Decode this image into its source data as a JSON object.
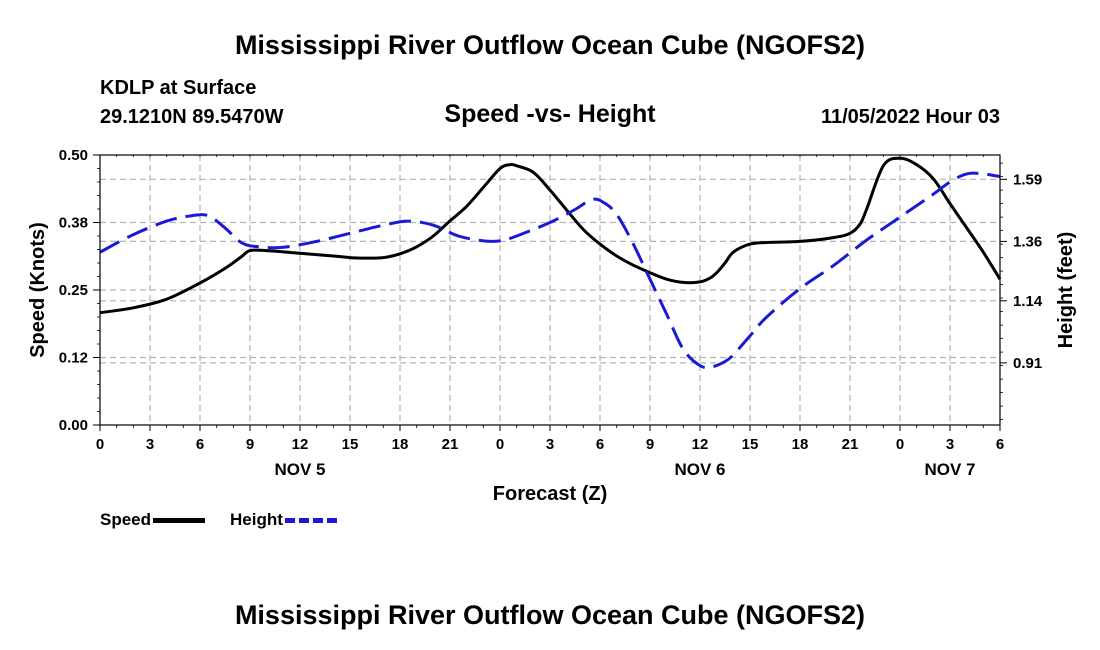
{
  "header": {
    "title": "Mississippi River Outflow Ocean Cube (NGOFS2)",
    "station": "KDLP at Surface",
    "coords": "29.1210N  89.5470W",
    "datetime": "11/05/2022 Hour 03",
    "footer_title": "Mississippi River Outflow Ocean Cube (NGOFS2)"
  },
  "legend": {
    "speed_label": "Speed",
    "height_label": "Height"
  },
  "colors": {
    "speed": "#000000",
    "height": "#1a1ad6",
    "grid": "#b4b4b4"
  },
  "chart_data": {
    "type": "line",
    "title": "Speed -vs- Height",
    "xlabel": "Forecast (Z)",
    "ylabel_left": "Speed (Knots)",
    "ylabel_right": "Height (feet)",
    "x_range_hours": [
      0,
      54
    ],
    "x_tick_hours": [
      0,
      3,
      6,
      9,
      12,
      15,
      18,
      21,
      24,
      27,
      30,
      33,
      36,
      39,
      42,
      45,
      48,
      51,
      54
    ],
    "x_tick_labels": [
      "0",
      "3",
      "6",
      "9",
      "12",
      "15",
      "18",
      "21",
      "0",
      "3",
      "6",
      "9",
      "12",
      "15",
      "18",
      "21",
      "0",
      "3",
      "6"
    ],
    "day_labels": [
      {
        "label": "NOV 5",
        "hour": 12
      },
      {
        "label": "NOV 6",
        "hour": 36
      },
      {
        "label": "NOV 7",
        "hour": 51
      }
    ],
    "y_left": {
      "min": 0,
      "max": 0.5,
      "ticks": [
        0.0,
        0.125,
        0.25,
        0.375,
        0.5
      ],
      "tick_labels": [
        "0.00",
        "0.12",
        "0.25",
        "0.38",
        "0.50"
      ]
    },
    "y_right": {
      "min": 0.68,
      "max": 1.68,
      "ticks": [
        0.91,
        1.14,
        1.36,
        1.59
      ],
      "tick_labels": [
        "0.91",
        "1.14",
        "1.36",
        "1.59"
      ]
    },
    "grid": true,
    "legend_position": "bottom-left",
    "series": [
      {
        "name": "Speed",
        "axis": "left",
        "style": "solid",
        "hours": [
          0,
          2,
          4,
          6,
          7.5,
          8.5,
          9,
          10,
          12,
          14,
          15,
          16,
          17,
          18,
          19,
          20,
          21,
          22,
          23,
          24,
          24.6,
          25,
          26,
          27,
          28,
          29,
          30,
          31,
          32,
          33,
          34,
          35,
          36,
          36.6,
          37,
          37.5,
          38,
          39,
          40,
          42,
          44,
          45,
          45.6,
          46,
          47,
          48,
          49,
          50,
          51,
          52,
          53,
          54
        ],
        "values": [
          0.208,
          0.217,
          0.233,
          0.263,
          0.29,
          0.312,
          0.323,
          0.323,
          0.318,
          0.313,
          0.31,
          0.309,
          0.31,
          0.317,
          0.33,
          0.35,
          0.378,
          0.405,
          0.44,
          0.475,
          0.482,
          0.48,
          0.468,
          0.435,
          0.398,
          0.362,
          0.335,
          0.313,
          0.296,
          0.282,
          0.27,
          0.264,
          0.265,
          0.272,
          0.282,
          0.3,
          0.32,
          0.335,
          0.338,
          0.34,
          0.347,
          0.355,
          0.372,
          0.4,
          0.48,
          0.494,
          0.482,
          0.456,
          0.41,
          0.365,
          0.32,
          0.27
        ]
      },
      {
        "name": "Height",
        "axis": "right",
        "style": "dashed",
        "hours": [
          0,
          2,
          4,
          5.5,
          6.5,
          7.5,
          8.5,
          9.5,
          11,
          13,
          15,
          17,
          18.5,
          20,
          21.5,
          23,
          24,
          25,
          27,
          28.5,
          29.5,
          30.2,
          31,
          32,
          33,
          34,
          35,
          36,
          36.7,
          37.5,
          38,
          39,
          40,
          42,
          44,
          46,
          48,
          50,
          51,
          52,
          53,
          54
        ],
        "values": [
          1.32,
          1.385,
          1.435,
          1.455,
          1.455,
          1.41,
          1.355,
          1.34,
          1.338,
          1.36,
          1.39,
          1.42,
          1.435,
          1.42,
          1.38,
          1.362,
          1.362,
          1.38,
          1.43,
          1.478,
          1.515,
          1.505,
          1.46,
          1.35,
          1.22,
          1.09,
          0.96,
          0.9,
          0.895,
          0.915,
          0.94,
          1.01,
          1.08,
          1.185,
          1.27,
          1.365,
          1.45,
          1.535,
          1.58,
          1.61,
          1.61,
          1.6
        ]
      }
    ]
  }
}
